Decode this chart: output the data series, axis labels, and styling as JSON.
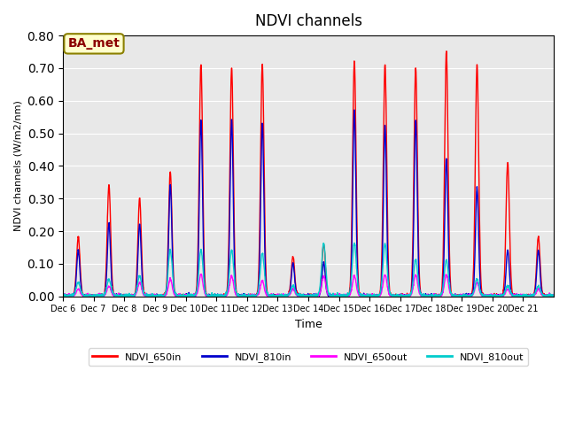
{
  "title": "NDVI channels",
  "xlabel": "Time",
  "ylabel": "NDVI channels (W/m2/nm)",
  "ylim": [
    0.0,
    0.8
  ],
  "bg_color": "#e8e8e8",
  "annotation_text": "BA_met",
  "annotation_facecolor": "#ffffcc",
  "annotation_edgecolor": "#8b8000",
  "annotation_textcolor": "#8b0000",
  "xtick_labels": [
    "Dec 6",
    "Dec 7",
    "Dec 8",
    "Dec 9",
    "Dec 10",
    "Dec 11",
    "Dec 12",
    "Dec 13",
    "Dec 14",
    "Dec 15",
    "Dec 16",
    "Dec 17",
    "Dec 18",
    "Dec 19",
    "Dec 20",
    "Dec 21"
  ],
  "line_colors": {
    "650in": "#ff0000",
    "810in": "#0000cc",
    "650out": "#ff00ff",
    "810out": "#00cccc"
  },
  "legend_labels": [
    "NDVI_650in",
    "NDVI_810in",
    "NDVI_650out",
    "NDVI_810out"
  ],
  "days": 16,
  "peak_heights_650in": [
    0.18,
    0.34,
    0.3,
    0.38,
    0.71,
    0.7,
    0.71,
    0.12,
    0.16,
    0.72,
    0.71,
    0.7,
    0.75,
    0.71,
    0.41,
    0.18
  ],
  "peak_heights_810in": [
    0.14,
    0.22,
    0.22,
    0.34,
    0.54,
    0.54,
    0.53,
    0.1,
    0.1,
    0.57,
    0.52,
    0.54,
    0.42,
    0.33,
    0.14,
    0.14
  ],
  "peak_heights_650out": [
    0.02,
    0.03,
    0.04,
    0.05,
    0.065,
    0.06,
    0.045,
    0.02,
    0.06,
    0.06,
    0.065,
    0.065,
    0.065,
    0.04,
    0.02,
    0.02
  ],
  "peak_heights_810out": [
    0.04,
    0.05,
    0.06,
    0.14,
    0.14,
    0.14,
    0.13,
    0.03,
    0.16,
    0.16,
    0.16,
    0.11,
    0.11,
    0.05,
    0.03,
    0.03
  ],
  "linewidth": 1.0
}
